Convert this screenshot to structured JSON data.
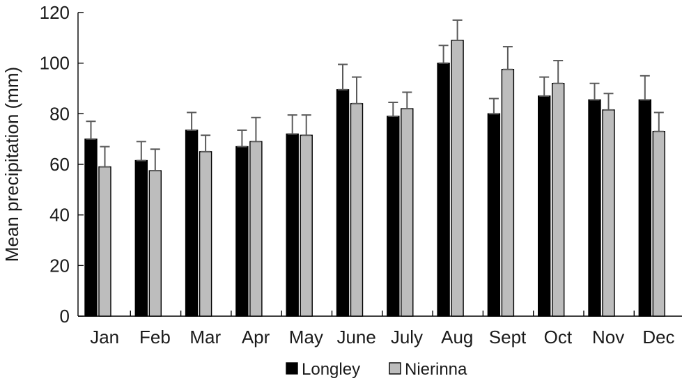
{
  "chart_data": {
    "type": "bar",
    "categories": [
      "Jan",
      "Feb",
      "Mar",
      "Apr",
      "May",
      "June",
      "July",
      "Aug",
      "Sept",
      "Oct",
      "Nov",
      "Dec"
    ],
    "series": [
      {
        "name": "Longley",
        "color": "#000000",
        "values": [
          70,
          61.5,
          73.5,
          67,
          72,
          89.5,
          79,
          100,
          80,
          87,
          85.5,
          85.5
        ],
        "error": [
          7,
          7.5,
          7,
          6.5,
          7.5,
          10,
          5.5,
          7,
          6,
          7.5,
          6.5,
          9.5
        ]
      },
      {
        "name": "Nierinna",
        "color": "#bdbdbd",
        "values": [
          59,
          57.5,
          65,
          69,
          71.5,
          84,
          82,
          109,
          97.5,
          92,
          81.5,
          73
        ],
        "error": [
          8,
          8.5,
          6.5,
          9.5,
          8,
          10.5,
          6.5,
          8,
          9,
          9,
          6.5,
          7.5
        ]
      }
    ],
    "ylabel": "Mean precipitation (mm)",
    "ylim": [
      0,
      120
    ],
    "yticks": [
      0,
      20,
      40,
      60,
      80,
      100,
      120
    ],
    "grid": false,
    "legend_position": "bottom-center"
  }
}
